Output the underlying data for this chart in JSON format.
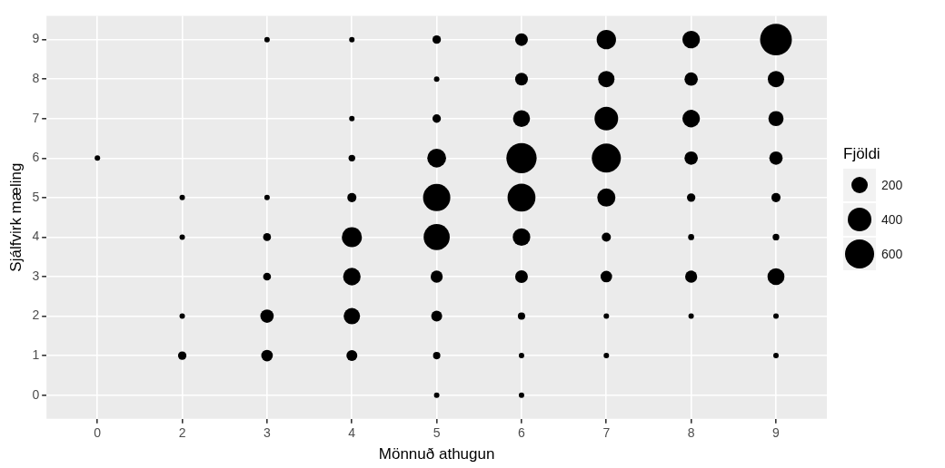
{
  "chart_data": {
    "type": "bubble",
    "xlabel": "Mönnuð athugun",
    "ylabel": "Sjálfvirk mæling",
    "legend_title": "Fjöldi",
    "categories": [
      "0",
      "2",
      "3",
      "4",
      "5",
      "6",
      "7",
      "8",
      "9"
    ],
    "ylim": [
      -0.6,
      9.6
    ],
    "yticks": [
      0,
      1,
      2,
      3,
      4,
      5,
      6,
      7,
      8,
      9
    ],
    "grid": true,
    "size_legend": [
      200,
      400,
      600
    ],
    "series": [
      {
        "color": "#000000",
        "x": [
          "0",
          "2",
          "2",
          "2",
          "2",
          "3",
          "3",
          "3",
          "3",
          "3",
          "3",
          "4",
          "4",
          "4",
          "4",
          "4",
          "4",
          "4",
          "4",
          "5",
          "5",
          "5",
          "5",
          "5",
          "5",
          "5",
          "5",
          "5",
          "5",
          "6",
          "6",
          "6",
          "6",
          "6",
          "6",
          "6",
          "6",
          "6",
          "6",
          "7",
          "7",
          "7",
          "7",
          "7",
          "7",
          "7",
          "7",
          "7",
          "8",
          "8",
          "8",
          "8",
          "8",
          "8",
          "8",
          "8",
          "9",
          "9",
          "9",
          "9",
          "9",
          "9",
          "9",
          "9",
          "9"
        ],
        "values": [
          6,
          5,
          4,
          2,
          1,
          9,
          5,
          4,
          3,
          2,
          1,
          9,
          7,
          6,
          5,
          4,
          3,
          2,
          1,
          9,
          8,
          7,
          6,
          5,
          4,
          3,
          2,
          1,
          0,
          9,
          8,
          7,
          6,
          5,
          4,
          3,
          2,
          1,
          0,
          9,
          8,
          7,
          6,
          5,
          4,
          3,
          2,
          1,
          9,
          8,
          7,
          6,
          5,
          4,
          3,
          2,
          9,
          8,
          7,
          6,
          5,
          4,
          3,
          2,
          1
        ],
        "sizes": [
          20,
          20,
          20,
          20,
          48,
          20,
          20,
          42,
          42,
          120,
          90,
          20,
          20,
          30,
          56,
          270,
          207,
          180,
          80,
          48,
          20,
          48,
          238,
          500,
          458,
          98,
          80,
          36,
          20,
          109,
          109,
          194,
          616,
          524,
          207,
          109,
          36,
          20,
          20,
          252,
          180,
          376,
          569,
          222,
          56,
          90,
          20,
          20,
          207,
          120,
          207,
          120,
          48,
          25,
          98,
          20,
          680,
          180,
          155,
          120,
          56,
          30,
          194,
          20,
          20
        ]
      }
    ]
  }
}
